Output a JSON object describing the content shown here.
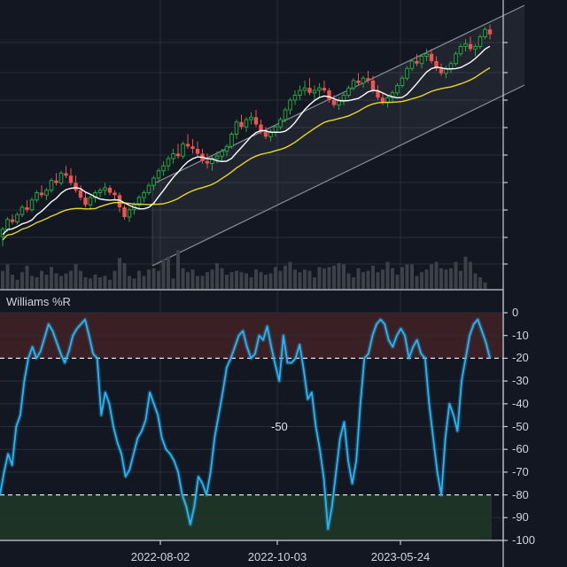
{
  "colors": {
    "background": "#131722",
    "grid": "#2a2e39",
    "up": "#26a641",
    "down": "#ef5350",
    "volume": "#3b4049",
    "ma_fast": "#ffffff",
    "ma_slow": "#e6d72a",
    "wr_line": "#29b6f6",
    "overbought_fill": "#3a2024",
    "oversold_fill": "#1c3326",
    "channel_fill": "rgba(120,126,140,0.13)",
    "channel_line": "#8a8f99",
    "axis": "#c8ccd4"
  },
  "indicator_panel": {
    "title": "Williams %R",
    "mid_label": "-50"
  },
  "x_axis": {
    "labels": [
      {
        "text": "2022-08-02",
        "x": 181
      },
      {
        "text": "2022-10-03",
        "x": 313
      },
      {
        "text": "2023-05-24",
        "x": 452
      }
    ]
  },
  "chart_data": [
    {
      "type": "candlestick",
      "title": "",
      "overlays": [
        "fast moving average (white)",
        "slow moving average (yellow)",
        "ascending linear-regression channel",
        "volume bars"
      ],
      "y_axis": {
        "labels_visible": false,
        "tick_count": 9
      },
      "x_ticks": [
        "2022-08-02",
        "2022-10-03",
        "2023-05-24"
      ],
      "grid": true,
      "note": "Price values unlabeled; series given in relative pixel-space units (higher = higher price, 0..100 scale)",
      "candles": [
        [
          12,
          16,
          8,
          15
        ],
        [
          15,
          20,
          14,
          19
        ],
        [
          19,
          21,
          17,
          18
        ],
        [
          18,
          22,
          17,
          21
        ],
        [
          21,
          25,
          20,
          24
        ],
        [
          24,
          27,
          22,
          23
        ],
        [
          23,
          28,
          22,
          27
        ],
        [
          27,
          31,
          26,
          30
        ],
        [
          30,
          33,
          28,
          29
        ],
        [
          29,
          32,
          27,
          31
        ],
        [
          31,
          36,
          30,
          35
        ],
        [
          35,
          38,
          33,
          34
        ],
        [
          34,
          39,
          33,
          38
        ],
        [
          38,
          41,
          36,
          37
        ],
        [
          37,
          40,
          33,
          34
        ],
        [
          34,
          37,
          30,
          31
        ],
        [
          31,
          33,
          27,
          28
        ],
        [
          28,
          30,
          24,
          25
        ],
        [
          25,
          29,
          23,
          28
        ],
        [
          28,
          31,
          26,
          30
        ],
        [
          30,
          32,
          28,
          31
        ],
        [
          31,
          34,
          29,
          32
        ],
        [
          32,
          33,
          29,
          30
        ],
        [
          30,
          31,
          27,
          29
        ],
        [
          29,
          30,
          22,
          24
        ],
        [
          24,
          25,
          19,
          20
        ],
        [
          20,
          24,
          18,
          23
        ],
        [
          23,
          26,
          21,
          25
        ],
        [
          25,
          29,
          23,
          28
        ],
        [
          28,
          31,
          26,
          30
        ],
        [
          30,
          34,
          29,
          33
        ],
        [
          33,
          37,
          31,
          36
        ],
        [
          36,
          40,
          34,
          39
        ],
        [
          39,
          43,
          37,
          41
        ],
        [
          41,
          45,
          39,
          44
        ],
        [
          44,
          48,
          42,
          46
        ],
        [
          46,
          50,
          44,
          45
        ],
        [
          45,
          51,
          44,
          50
        ],
        [
          50,
          54,
          48,
          49
        ],
        [
          49,
          52,
          46,
          48
        ],
        [
          48,
          51,
          45,
          46
        ],
        [
          46,
          48,
          42,
          43
        ],
        [
          43,
          46,
          40,
          42
        ],
        [
          42,
          45,
          39,
          44
        ],
        [
          44,
          47,
          42,
          45
        ],
        [
          45,
          48,
          43,
          47
        ],
        [
          47,
          50,
          45,
          49
        ],
        [
          49,
          55,
          48,
          54
        ],
        [
          54,
          60,
          52,
          59
        ],
        [
          59,
          62,
          56,
          57
        ],
        [
          57,
          61,
          55,
          60
        ],
        [
          60,
          63,
          58,
          61
        ],
        [
          61,
          64,
          57,
          58
        ],
        [
          58,
          60,
          54,
          55
        ],
        [
          55,
          57,
          52,
          53
        ],
        [
          53,
          56,
          51,
          55
        ],
        [
          55,
          58,
          53,
          57
        ],
        [
          57,
          61,
          56,
          60
        ],
        [
          60,
          65,
          59,
          64
        ],
        [
          64,
          69,
          62,
          68
        ],
        [
          68,
          72,
          66,
          70
        ],
        [
          70,
          74,
          68,
          72
        ],
        [
          72,
          76,
          70,
          73
        ],
        [
          73,
          77,
          70,
          71
        ],
        [
          71,
          74,
          68,
          72
        ],
        [
          72,
          75,
          69,
          73
        ],
        [
          73,
          76,
          71,
          72
        ],
        [
          72,
          73,
          67,
          68
        ],
        [
          68,
          70,
          65,
          66
        ],
        [
          66,
          69,
          64,
          68
        ],
        [
          68,
          71,
          66,
          70
        ],
        [
          70,
          74,
          69,
          73
        ],
        [
          73,
          77,
          72,
          76
        ],
        [
          76,
          79,
          74,
          75
        ],
        [
          75,
          78,
          73,
          77
        ],
        [
          77,
          80,
          75,
          76
        ],
        [
          76,
          78,
          71,
          72
        ],
        [
          72,
          74,
          68,
          69
        ],
        [
          69,
          71,
          66,
          67
        ],
        [
          67,
          70,
          65,
          69
        ],
        [
          69,
          72,
          67,
          71
        ],
        [
          71,
          75,
          70,
          74
        ],
        [
          74,
          78,
          73,
          77
        ],
        [
          77,
          82,
          76,
          81
        ],
        [
          81,
          85,
          80,
          84
        ],
        [
          84,
          87,
          82,
          83
        ],
        [
          83,
          87,
          81,
          86
        ],
        [
          86,
          89,
          84,
          87
        ],
        [
          87,
          89,
          83,
          84
        ],
        [
          84,
          86,
          80,
          81
        ],
        [
          81,
          83,
          78,
          79
        ],
        [
          79,
          82,
          77,
          81
        ],
        [
          81,
          84,
          79,
          83
        ],
        [
          83,
          88,
          82,
          87
        ],
        [
          87,
          91,
          86,
          90
        ],
        [
          90,
          93,
          88,
          91
        ],
        [
          91,
          94,
          88,
          89
        ],
        [
          89,
          91,
          86,
          90
        ],
        [
          90,
          95,
          89,
          94
        ],
        [
          94,
          98,
          93,
          97
        ],
        [
          97,
          99,
          93,
          95
        ]
      ],
      "volume": [
        14,
        19,
        11,
        7,
        13,
        18,
        10,
        9,
        14,
        11,
        17,
        12,
        10,
        12,
        14,
        19,
        14,
        9,
        8,
        11,
        9,
        10,
        7,
        14,
        24,
        20,
        10,
        8,
        14,
        10,
        15,
        16,
        14,
        23,
        25,
        8,
        30,
        16,
        13,
        15,
        10,
        10,
        13,
        15,
        20,
        16,
        11,
        13,
        14,
        13,
        12,
        9,
        15,
        13,
        11,
        12,
        17,
        14,
        18,
        21,
        15,
        13,
        15,
        14,
        9,
        17,
        16,
        17,
        18,
        20,
        19,
        12,
        9,
        16,
        13,
        14,
        18,
        13,
        15,
        21,
        16,
        11,
        17,
        19,
        19,
        10,
        13,
        15,
        19,
        21,
        16,
        15,
        16,
        21,
        14,
        25,
        21,
        12,
        9,
        5
      ]
    },
    {
      "type": "line",
      "title": "Williams %R",
      "ylabel": "",
      "ylim": [
        -100,
        0
      ],
      "y_ticks": [
        0,
        -10,
        -20,
        -30,
        -40,
        -50,
        -60,
        -70,
        -80,
        -90,
        -100
      ],
      "reference_lines": [
        -20,
        -80
      ],
      "zones": [
        {
          "name": "overbought",
          "from": 0,
          "to": -20
        },
        {
          "name": "oversold",
          "from": -80,
          "to": -100
        }
      ],
      "annotations": [
        "-50"
      ],
      "grid": true,
      "values": [
        -80,
        -70,
        -62,
        -67,
        -50,
        -45,
        -30,
        -20,
        -15,
        -20,
        -17,
        -11,
        -5,
        -8,
        -13,
        -18,
        -22,
        -17,
        -10,
        -7,
        -5,
        -3,
        -10,
        -18,
        -20,
        -45,
        -35,
        -40,
        -50,
        -57,
        -62,
        -72,
        -69,
        -62,
        -55,
        -52,
        -47,
        -35,
        -40,
        -45,
        -55,
        -60,
        -62,
        -65,
        -70,
        -80,
        -85,
        -93,
        -85,
        -72,
        -75,
        -80,
        -70,
        -55,
        -45,
        -35,
        -24,
        -20,
        -15,
        -10,
        -8,
        -15,
        -20,
        -18,
        -10,
        -12,
        -6,
        -15,
        -23,
        -30,
        -10,
        -22,
        -22,
        -20,
        -14,
        -25,
        -38,
        -35,
        -50,
        -60,
        -73,
        -95,
        -85,
        -70,
        -55,
        -48,
        -65,
        -75,
        -65,
        -40,
        -20,
        -18,
        -10,
        -5,
        -3,
        -5,
        -12,
        -15,
        -10,
        -7,
        -10,
        -20,
        -15,
        -12,
        -18,
        -20,
        -40,
        -55,
        -70,
        -80,
        -55,
        -40,
        -45,
        -52,
        -30,
        -20,
        -10,
        -5,
        -3,
        -8,
        -13,
        -20
      ]
    }
  ]
}
